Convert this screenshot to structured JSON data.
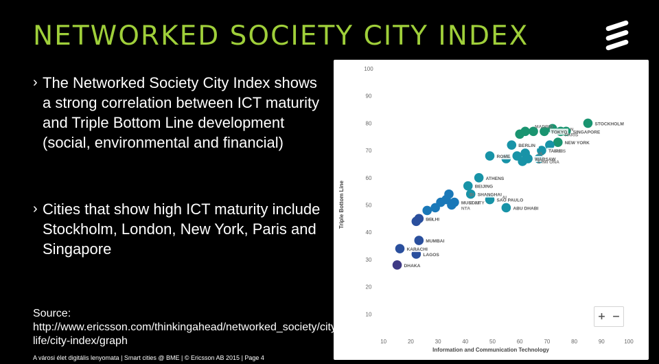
{
  "slide": {
    "title": "NETWORKED SOCIETY CITY INDEX",
    "bullets": [
      "The Networked Society City Index shows a strong correlation between ICT maturity and Triple Bottom Line development (social, environmental and financial)",
      "Cities that show high ICT maturity include Stockholm, London, New York, Paris and Singapore"
    ],
    "bullet_marker": "›",
    "source": "Source: http://www.ericsson.com/thinkingahead/networked_society/city-life/city-index/graph",
    "footer": "A városi élet digitális lenyomata  |  Smart cities @ BME  |  © Ericsson AB 2015  |  Page 4",
    "logo_icon": "ericsson-logo-icon"
  },
  "zoom": {
    "plus": "+",
    "minus": "−"
  },
  "colors": {
    "title": "#9fcf3a",
    "top_tier": "#1a9470",
    "mid_tier": "#1893a7",
    "upper_low": "#1a78b8",
    "low_tier": "#2a4f9d",
    "bottom": "#3f3a85"
  },
  "chart_data": {
    "type": "scatter",
    "xlabel": "Information and Communication Technology",
    "ylabel": "Triple Bottom Line",
    "xlim": [
      0,
      100
    ],
    "ylim": [
      0,
      100
    ],
    "x_ticks": [
      10,
      20,
      30,
      40,
      50,
      60,
      70,
      80,
      90,
      100
    ],
    "y_ticks": [
      10,
      20,
      30,
      40,
      50,
      60,
      70,
      80,
      90,
      100
    ],
    "grid": false,
    "points": [
      {
        "x": 85,
        "y": 80,
        "label": "STOCKHOLM",
        "tier": "top_tier"
      },
      {
        "x": 77,
        "y": 77,
        "label": "SINGAPORE",
        "tier": "top_tier"
      },
      {
        "x": 75,
        "y": 77,
        "label": "",
        "tier": "top_tier"
      },
      {
        "x": 72,
        "y": 78,
        "label": "",
        "tier": "top_tier"
      },
      {
        "x": 69,
        "y": 77,
        "label": "TOKYO",
        "tier": "top_tier"
      },
      {
        "x": 65,
        "y": 77,
        "label": "",
        "tier": "top_tier"
      },
      {
        "x": 62,
        "y": 77,
        "label": "",
        "tier": "top_tier"
      },
      {
        "x": 60,
        "y": 76,
        "label": "",
        "tier": "top_tier"
      },
      {
        "x": 74,
        "y": 73,
        "label": "NEW YORK",
        "tier": "top_tier"
      },
      {
        "x": 71,
        "y": 72,
        "label": "",
        "tier": "mid_tier"
      },
      {
        "x": 57,
        "y": 72,
        "label": "BERLIN",
        "tier": "mid_tier"
      },
      {
        "x": 68,
        "y": 70,
        "label": "TAIPEI",
        "tier": "mid_tier"
      },
      {
        "x": 62,
        "y": 69,
        "label": "",
        "tier": "mid_tier"
      },
      {
        "x": 59,
        "y": 68,
        "label": "",
        "tier": "mid_tier"
      },
      {
        "x": 63,
        "y": 67,
        "label": "WARSAW",
        "tier": "mid_tier"
      },
      {
        "x": 67,
        "y": 67,
        "label": "",
        "tier": "mid_tier"
      },
      {
        "x": 61,
        "y": 66,
        "label": "",
        "tier": "mid_tier"
      },
      {
        "x": 49,
        "y": 68,
        "label": "ROME",
        "tier": "mid_tier"
      },
      {
        "x": 55,
        "y": 67,
        "label": "",
        "tier": "mid_tier"
      },
      {
        "x": 45,
        "y": 60,
        "label": "ATHENS",
        "tier": "mid_tier"
      },
      {
        "x": 41,
        "y": 57,
        "label": "BEIJING",
        "tier": "mid_tier"
      },
      {
        "x": 42,
        "y": 54,
        "label": "SHANGHAI",
        "tier": "mid_tier"
      },
      {
        "x": 49,
        "y": 52,
        "label": "SAO PAULO",
        "tier": "mid_tier"
      },
      {
        "x": 55,
        "y": 49,
        "label": "ABU DHABI",
        "tier": "mid_tier"
      },
      {
        "x": 34,
        "y": 54,
        "label": "",
        "tier": "upper_low"
      },
      {
        "x": 33,
        "y": 52,
        "label": "",
        "tier": "upper_low"
      },
      {
        "x": 31,
        "y": 51,
        "label": "",
        "tier": "upper_low"
      },
      {
        "x": 36,
        "y": 51,
        "label": "MUSCAT",
        "tier": "upper_low"
      },
      {
        "x": 35,
        "y": 50,
        "label": "",
        "tier": "upper_low"
      },
      {
        "x": 29,
        "y": 49,
        "label": "",
        "tier": "upper_low"
      },
      {
        "x": 26,
        "y": 48,
        "label": "",
        "tier": "upper_low"
      },
      {
        "x": 23,
        "y": 45,
        "label": "DELHI",
        "tier": "low_tier"
      },
      {
        "x": 22,
        "y": 44,
        "label": "",
        "tier": "low_tier"
      },
      {
        "x": 23,
        "y": 37,
        "label": "MUMBAI",
        "tier": "low_tier"
      },
      {
        "x": 16,
        "y": 34,
        "label": "KARACHI",
        "tier": "low_tier"
      },
      {
        "x": 22,
        "y": 32,
        "label": "LAGOS",
        "tier": "low_tier"
      },
      {
        "x": 15,
        "y": 28,
        "label": "DHAKA",
        "tier": "bottom"
      }
    ],
    "partial_labels": [
      {
        "x": 76,
        "y": 78,
        "text": "N"
      },
      {
        "x": 74,
        "y": 76,
        "text": "PARIS"
      },
      {
        "x": 70,
        "y": 70,
        "text": "ELES"
      },
      {
        "x": 64,
        "y": 69,
        "text": "UL"
      },
      {
        "x": 66,
        "y": 66,
        "text": "MI ONA"
      },
      {
        "x": 64,
        "y": 66,
        "text": "EY"
      },
      {
        "x": 51,
        "y": 53,
        "text": "AI"
      },
      {
        "x": 39,
        "y": 51,
        "text": "O CITY"
      },
      {
        "x": 36,
        "y": 49,
        "text": "NTA"
      },
      {
        "x": 23,
        "y": 45,
        "text": "RO"
      },
      {
        "x": 39,
        "y": 54,
        "text": "BI"
      },
      {
        "x": 63,
        "y": 79,
        "text": "MADRID"
      }
    ]
  }
}
